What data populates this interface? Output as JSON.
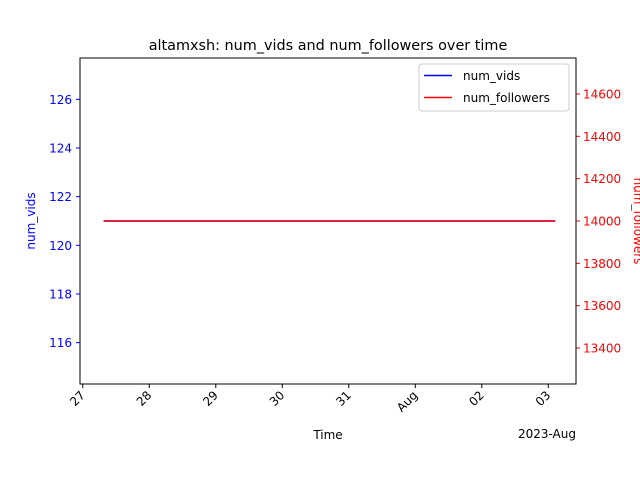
{
  "chart_data": {
    "type": "line",
    "title": "altamxsh: num_vids and num_followers over time",
    "xlabel": "Time",
    "x_offset_label": "2023-Aug",
    "x_ticks": [
      "27",
      "28",
      "29",
      "30",
      "31",
      "Aug",
      "02",
      "03"
    ],
    "x_tick_dates": [
      "2023-07-27",
      "2023-07-28",
      "2023-07-29",
      "2023-07-30",
      "2023-07-31",
      "2023-08-01",
      "2023-08-02",
      "2023-08-03"
    ],
    "xlim": [
      "2023-07-26 23:00",
      "2023-08-03 10:00"
    ],
    "left_axis": {
      "label": "num_vids",
      "color": "#0000ff",
      "ylim": [
        114.3,
        127.7
      ],
      "ticks": [
        "116",
        "118",
        "120",
        "122",
        "124",
        "126"
      ]
    },
    "right_axis": {
      "label": "num_followers",
      "color": "#ff0000",
      "ylim": [
        13230,
        14770
      ],
      "ticks": [
        "13400",
        "13600",
        "13800",
        "14000",
        "14200",
        "14400",
        "14600"
      ]
    },
    "series": [
      {
        "name": "num_vids",
        "axis": "left",
        "color": "#0000ff",
        "x": [
          "2023-07-27 07:30",
          "2023-08-03 02:30"
        ],
        "values": [
          121,
          121
        ]
      },
      {
        "name": "num_followers",
        "axis": "right",
        "color": "#ff0000",
        "x": [
          "2023-07-27 07:30",
          "2023-08-03 02:30"
        ],
        "values": [
          14000,
          14000
        ]
      }
    ],
    "legend": {
      "position": "top-right",
      "entries": [
        {
          "label": "num_vids",
          "color": "#0000ff"
        },
        {
          "label": "num_followers",
          "color": "#ff0000"
        }
      ]
    },
    "grid": false
  }
}
